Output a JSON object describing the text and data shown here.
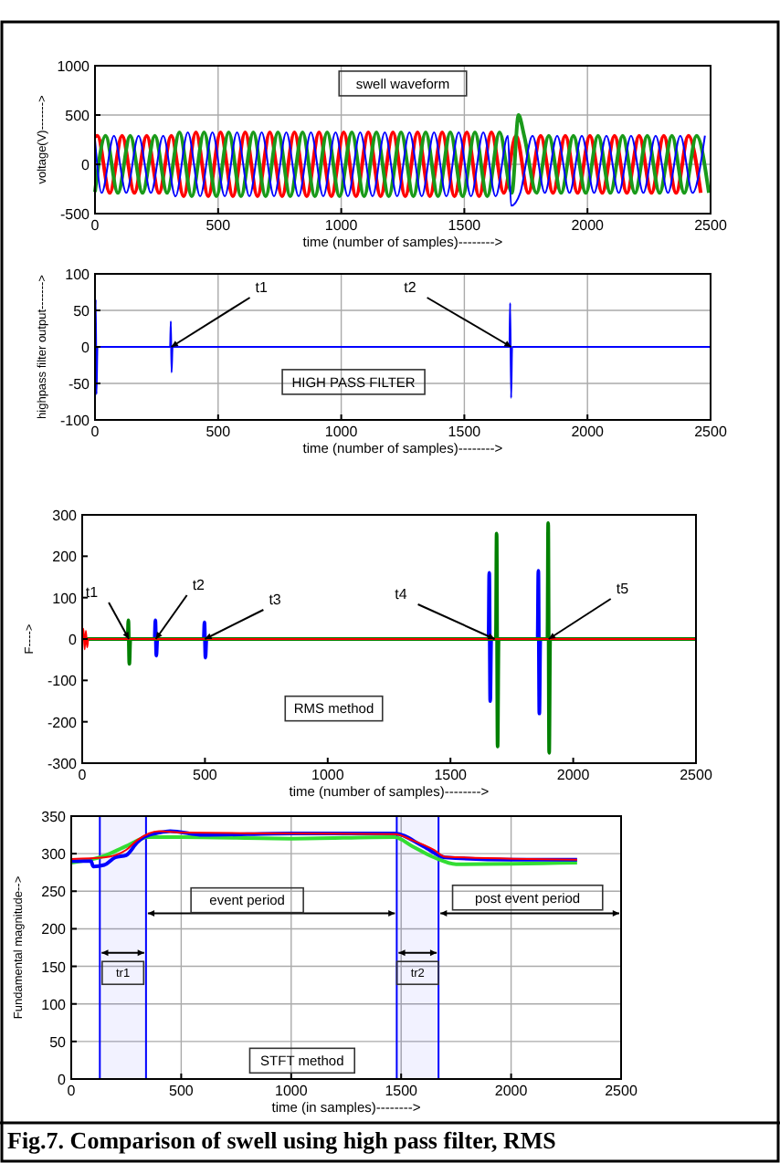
{
  "chart_data": [
    {
      "type": "line",
      "xlabel": "time (number of samples)-------->",
      "ylabel": "voltage(V)------->",
      "annotations": [
        "swell waveform"
      ],
      "xlim": [
        0,
        2500
      ],
      "ylim": [
        -500,
        1000
      ],
      "xticks": [
        0,
        500,
        1000,
        1500,
        2000,
        2500
      ],
      "yticks": [
        -500,
        0,
        500,
        1000
      ],
      "grid": true,
      "series": [
        {
          "color": "#ff0000",
          "x": [
            0,
            10,
            60,
            110,
            160,
            210,
            260,
            310,
            360,
            410,
            460,
            510,
            560,
            610,
            660,
            710,
            760,
            810,
            860,
            910,
            960,
            1010,
            1060,
            1110,
            1160,
            1210,
            1260,
            1310,
            1360,
            1410,
            1460,
            1510,
            1560,
            1610,
            1660,
            1710,
            1760,
            1810,
            1860,
            1910,
            1960,
            2010,
            2060,
            2110,
            2160,
            2210,
            2260,
            2310,
            2360,
            2410,
            2460
          ],
          "values": [
            280,
            290,
            -290,
            290,
            -290,
            290,
            -290,
            290,
            -325,
            325,
            -325,
            325,
            -325,
            325,
            -325,
            325,
            -325,
            325,
            -325,
            325,
            -325,
            325,
            -325,
            325,
            -325,
            325,
            -325,
            325,
            -325,
            325,
            -325,
            325,
            -325,
            325,
            -290,
            290,
            -290,
            290,
            -290,
            290,
            -290,
            290,
            -290,
            290,
            -290,
            290,
            -290,
            290,
            -290,
            290,
            -290
          ]
        },
        {
          "color": "#1a9a1a",
          "x": [
            0,
            43,
            93,
            143,
            193,
            243,
            293,
            343,
            393,
            443,
            493,
            543,
            593,
            643,
            693,
            743,
            793,
            843,
            893,
            943,
            993,
            1043,
            1093,
            1143,
            1193,
            1243,
            1293,
            1343,
            1393,
            1443,
            1493,
            1543,
            1593,
            1643,
            1693,
            1720,
            1743,
            1793,
            1843,
            1893,
            1943,
            1993,
            2043,
            2093,
            2143,
            2193,
            2243,
            2293,
            2343,
            2393,
            2443,
            2493
          ],
          "values": [
            -280,
            290,
            -290,
            290,
            -290,
            290,
            -290,
            325,
            -325,
            325,
            -325,
            325,
            -325,
            325,
            -325,
            325,
            -325,
            325,
            -325,
            325,
            -325,
            325,
            -325,
            325,
            -325,
            325,
            -325,
            325,
            -325,
            325,
            -325,
            325,
            -325,
            325,
            -290,
            500,
            290,
            -290,
            290,
            -290,
            290,
            -290,
            290,
            -290,
            290,
            -290,
            290,
            -290,
            290,
            -290,
            290,
            -290
          ]
        },
        {
          "color": "#0000ff",
          "x": [
            0,
            27,
            77,
            127,
            177,
            227,
            277,
            327,
            377,
            427,
            477,
            527,
            577,
            627,
            677,
            727,
            777,
            827,
            877,
            927,
            977,
            1027,
            1077,
            1127,
            1177,
            1227,
            1277,
            1327,
            1377,
            1427,
            1477,
            1527,
            1577,
            1627,
            1677,
            1690,
            1727,
            1777,
            1827,
            1877,
            1927,
            1977,
            2027,
            2077,
            2127,
            2177,
            2227,
            2277,
            2327,
            2377,
            2427,
            2477
          ],
          "values": [
            250,
            -290,
            290,
            -290,
            290,
            -290,
            290,
            -325,
            325,
            -325,
            325,
            -325,
            325,
            -325,
            325,
            -325,
            325,
            -325,
            325,
            -325,
            325,
            -325,
            325,
            -325,
            325,
            -325,
            325,
            -325,
            325,
            -325,
            325,
            -325,
            325,
            -325,
            290,
            -420,
            -290,
            290,
            -290,
            290,
            -290,
            290,
            -290,
            290,
            -290,
            290,
            -290,
            290,
            -290,
            290,
            -290,
            290
          ]
        }
      ]
    },
    {
      "type": "line",
      "xlabel": "time (number of samples)-------->",
      "ylabel": "highpass filter output------->",
      "annotations": [
        "HIGH PASS FILTER",
        {
          "text": "t1",
          "x": 310,
          "y": 0
        },
        {
          "text": "t2",
          "x": 1690,
          "y": 0
        }
      ],
      "xlim": [
        0,
        2500
      ],
      "ylim": [
        -100,
        100
      ],
      "xticks": [
        0,
        500,
        1000,
        1500,
        2000,
        2500
      ],
      "yticks": [
        -100,
        -50,
        0,
        50,
        100
      ],
      "grid": true,
      "series": [
        {
          "color": "#0000ff",
          "x": [
            0,
            3,
            6,
            10,
            305,
            308,
            311,
            315,
            1683,
            1686,
            1690,
            1694,
            2500
          ],
          "values": [
            0,
            65,
            -65,
            0,
            0,
            35,
            -35,
            0,
            0,
            60,
            -70,
            0,
            0
          ]
        }
      ]
    },
    {
      "type": "line",
      "xlabel": "time (number of samples)-------->",
      "ylabel": "F---->",
      "annotations": [
        "RMS method",
        {
          "text": "t1",
          "x": 190,
          "y": 0
        },
        {
          "text": "t2",
          "x": 300,
          "y": 0
        },
        {
          "text": "t3",
          "x": 500,
          "y": 0
        },
        {
          "text": "t4",
          "x": 1680,
          "y": 0
        },
        {
          "text": "t5",
          "x": 1900,
          "y": 0
        }
      ],
      "xlim": [
        0,
        2500
      ],
      "ylim": [
        -300,
        300
      ],
      "xticks": [
        0,
        500,
        1000,
        1500,
        2000,
        2500
      ],
      "yticks": [
        -300,
        -200,
        -100,
        0,
        100,
        200,
        300
      ],
      "grid": false,
      "series": [
        {
          "color": "#0000ff",
          "x": [
            0,
            295,
            298,
            302,
            306,
            495,
            498,
            502,
            506,
            1655,
            1658,
            1662,
            1666,
            1855,
            1858,
            1862,
            1866,
            2500
          ],
          "values": [
            0,
            0,
            45,
            -40,
            0,
            0,
            40,
            -45,
            0,
            0,
            160,
            -150,
            0,
            0,
            165,
            -180,
            0,
            0
          ]
        },
        {
          "color": "#008000",
          "x": [
            0,
            185,
            188,
            192,
            196,
            1685,
            1688,
            1692,
            1696,
            1895,
            1898,
            1902,
            1906,
            2500
          ],
          "values": [
            0,
            0,
            45,
            -60,
            0,
            0,
            255,
            -260,
            0,
            0,
            280,
            -275,
            0,
            0
          ]
        },
        {
          "color": "#ff0000",
          "x": [
            0,
            5,
            10,
            15,
            20,
            25,
            2500
          ],
          "values": [
            0,
            25,
            -25,
            20,
            -20,
            0,
            0
          ]
        }
      ]
    },
    {
      "type": "line",
      "xlabel": "time (in samples)-------->",
      "ylabel": "Fundamental magnitude-->",
      "annotations": [
        "event period",
        "post event period",
        "STFT method",
        "Fig.7. Comparison of swell using high pass filter, RMS"
      ],
      "xlim": [
        0,
        2500
      ],
      "ylim": [
        0,
        350
      ],
      "xticks": [
        0,
        500,
        1000,
        1500,
        2000,
        2500
      ],
      "yticks": [
        0,
        50,
        100,
        150,
        200,
        250,
        300,
        350
      ],
      "grid": true,
      "bands": [
        {
          "axis": "x",
          "from": 130,
          "to": 340,
          "label": "tr1",
          "color": "#0000ff"
        },
        {
          "axis": "x",
          "from": 1480,
          "to": 1670,
          "label": "tr2",
          "color": "#0000ff"
        }
      ],
      "series": [
        {
          "color": "#33dd33",
          "x": [
            0,
            150,
            250,
            350,
            500,
            1000,
            1470,
            1550,
            1650,
            1750,
            2300
          ],
          "values": [
            288,
            297,
            310,
            322,
            322,
            320,
            322,
            310,
            295,
            286,
            288
          ]
        },
        {
          "color": "#0000ff",
          "x": [
            0,
            90,
            100,
            150,
            200,
            250,
            300,
            330,
            400,
            450,
            600,
            1000,
            1470,
            1600,
            1700,
            2000,
            2300
          ],
          "values": [
            290,
            290,
            283,
            285,
            295,
            298,
            315,
            322,
            328,
            330,
            325,
            327,
            327,
            310,
            295,
            292,
            292
          ]
        },
        {
          "color": "#ff0000",
          "x": [
            0,
            150,
            250,
            300,
            400,
            500,
            1000,
            1470,
            1550,
            1650,
            1700,
            2300
          ],
          "values": [
            293,
            295,
            305,
            318,
            330,
            328,
            327,
            326,
            318,
            305,
            296,
            292
          ]
        }
      ]
    }
  ]
}
